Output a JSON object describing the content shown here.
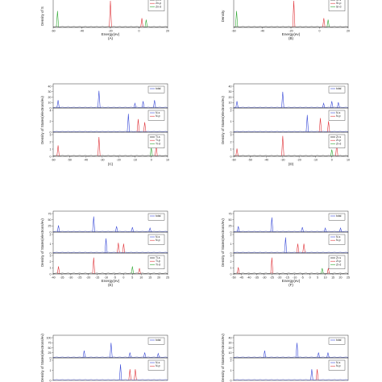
{
  "figure": {
    "panels": [
      {
        "id": "A",
        "caption": "(A)",
        "xlabel": "Energy(ev)",
        "ylabel": "Density of S",
        "xticks": [
          "-60",
          "-40",
          "-20",
          "0",
          "20"
        ],
        "subplots": [
          {
            "legend": [
              "Zn-s",
              "Zn-p",
              "Zn-d"
            ],
            "colors": [
              "#000000",
              "#e0343a",
              "#2fa832"
            ],
            "peaks": [
              {
                "x": -57,
                "h": 0.55,
                "c": 2
              },
              {
                "x": -20,
                "h": 0.9,
                "c": 1
              },
              {
                "x": 2,
                "h": 0.3,
                "c": 1
              },
              {
                "x": 5,
                "h": 0.25,
                "c": 2
              }
            ]
          }
        ]
      },
      {
        "id": "B",
        "caption": "(B)",
        "xlabel": "Energy(ev)",
        "ylabel": "Density",
        "xticks": [
          "-60",
          "-40",
          "-20",
          "0",
          "20"
        ],
        "subplots": [
          {
            "legend": [
              "Sr-s",
              "Sr-p",
              "Sr-d"
            ],
            "colors": [
              "#000000",
              "#e0343a",
              "#2fa832"
            ],
            "peaks": [
              {
                "x": -58,
                "h": 0.55,
                "c": 2
              },
              {
                "x": -18,
                "h": 0.9,
                "c": 1
              },
              {
                "x": 3,
                "h": 0.3,
                "c": 1
              },
              {
                "x": 6,
                "h": 0.25,
                "c": 2
              }
            ]
          }
        ]
      },
      {
        "id": "C",
        "caption": "(C)",
        "xlabel": "",
        "ylabel": "Density of States(electrons/ev)",
        "xticks": [
          "-60",
          "-50",
          "-40",
          "-30",
          "-20",
          "-10",
          "0",
          "10"
        ],
        "subplots": [
          {
            "legend": [
              "total"
            ],
            "colors": [
              "#3a4bd8"
            ],
            "yticks": [
              "0",
              "10",
              "20",
              "30",
              "40"
            ],
            "peaks": [
              {
                "x": -57,
                "h": 0.35,
                "c": 0
              },
              {
                "x": -32,
                "h": 0.8,
                "c": 0
              },
              {
                "x": -10,
                "h": 0.2,
                "c": 0
              },
              {
                "x": -5,
                "h": 0.3,
                "c": 0
              },
              {
                "x": 2,
                "h": 0.35,
                "c": 0
              }
            ]
          },
          {
            "legend": [
              "N-s",
              "N-p"
            ],
            "colors": [
              "#3a4bd8",
              "#e0343a"
            ],
            "yticks": [
              "0",
              "2",
              "4"
            ],
            "peaks": [
              {
                "x": -14,
                "h": 0.85,
                "c": 0
              },
              {
                "x": -8,
                "h": 0.6,
                "c": 1
              },
              {
                "x": -4,
                "h": 0.45,
                "c": 1
              }
            ]
          },
          {
            "legend": [
              "Ti-s",
              "Ti-p",
              "Ti-d"
            ],
            "colors": [
              "#000000",
              "#e0343a",
              "#2fa832"
            ],
            "yticks": [
              "0",
              "1",
              "2",
              "3"
            ],
            "peaks": [
              {
                "x": -57,
                "h": 0.5,
                "c": 1
              },
              {
                "x": -32,
                "h": 0.9,
                "c": 1
              },
              {
                "x": 0,
                "h": 0.4,
                "c": 2
              },
              {
                "x": 3,
                "h": 0.5,
                "c": 1
              }
            ]
          }
        ],
        "caption_x": [
          "-60",
          "-50",
          "-40",
          "-30",
          "-20",
          "-10",
          "0",
          "10"
        ]
      },
      {
        "id": "D",
        "caption": "(D)",
        "xlabel": "",
        "ylabel": "Density of States(electrons/ev)",
        "xticks": [
          "-60",
          "-50",
          "-40",
          "-30",
          "-20",
          "-10",
          "0",
          "10"
        ],
        "subplots": [
          {
            "legend": [
              "total"
            ],
            "colors": [
              "#3a4bd8"
            ],
            "yticks": [
              "0",
              "10",
              "20",
              "30",
              "40"
            ],
            "peaks": [
              {
                "x": -58,
                "h": 0.3,
                "c": 0
              },
              {
                "x": -30,
                "h": 0.75,
                "c": 0
              },
              {
                "x": -5,
                "h": 0.2,
                "c": 0
              },
              {
                "x": 0,
                "h": 0.3,
                "c": 0
              },
              {
                "x": 4,
                "h": 0.25,
                "c": 0
              }
            ]
          },
          {
            "legend": [
              "N-s",
              "N-p"
            ],
            "colors": [
              "#3a4bd8",
              "#e0343a"
            ],
            "yticks": [
              "0",
              "1",
              "2"
            ],
            "peaks": [
              {
                "x": -15,
                "h": 0.8,
                "c": 0
              },
              {
                "x": -7,
                "h": 0.65,
                "c": 1
              },
              {
                "x": -2,
                "h": 0.5,
                "c": 1
              }
            ]
          },
          {
            "legend": [
              "Zr-s",
              "Zr-p",
              "Zr-d"
            ],
            "colors": [
              "#000000",
              "#e0343a",
              "#2fa832"
            ],
            "yticks": [
              "0",
              "1",
              "2",
              "3"
            ],
            "peaks": [
              {
                "x": -58,
                "h": 0.35,
                "c": 1
              },
              {
                "x": -30,
                "h": 0.95,
                "c": 1
              },
              {
                "x": 0,
                "h": 0.3,
                "c": 2
              },
              {
                "x": 3,
                "h": 0.55,
                "c": 1
              }
            ]
          }
        ]
      },
      {
        "id": "E",
        "caption": "(E)",
        "xlabel": "Energy(ev)",
        "ylabel": "Density of States(electrons/ev)",
        "xticks": [
          "-40",
          "-35",
          "-30",
          "-25",
          "-20",
          "-15",
          "-10",
          "-5",
          "0",
          "5",
          "10",
          "15",
          "20",
          "25"
        ],
        "subplots": [
          {
            "legend": [
              "total"
            ],
            "colors": [
              "#3a4bd8"
            ],
            "yticks": [
              "0",
              "25",
              "50",
              "75"
            ],
            "peaks": [
              {
                "x": -37,
                "h": 0.35,
                "c": 0
              },
              {
                "x": -17,
                "h": 0.85,
                "c": 0
              },
              {
                "x": -4,
                "h": 0.3,
                "c": 0
              },
              {
                "x": 5,
                "h": 0.25,
                "c": 0
              },
              {
                "x": 15,
                "h": 0.2,
                "c": 0
              }
            ]
          },
          {
            "legend": [
              "N-s",
              "N-p"
            ],
            "colors": [
              "#3a4bd8",
              "#e0343a"
            ],
            "yticks": [
              "0",
              "1",
              "2"
            ],
            "peaks": [
              {
                "x": -10,
                "h": 0.8,
                "c": 0
              },
              {
                "x": -3,
                "h": 0.55,
                "c": 1
              },
              {
                "x": 0,
                "h": 0.5,
                "c": 1
              }
            ]
          },
          {
            "legend": [
              "Ti-s",
              "Ti-p",
              "Ti-d"
            ],
            "colors": [
              "#000000",
              "#e0343a",
              "#2fa832"
            ],
            "yticks": [
              "0",
              "1",
              "2",
              "3"
            ],
            "peaks": [
              {
                "x": -37,
                "h": 0.4,
                "c": 1
              },
              {
                "x": -17,
                "h": 0.9,
                "c": 1
              },
              {
                "x": 5,
                "h": 0.4,
                "c": 2
              },
              {
                "x": 9,
                "h": 0.3,
                "c": 1
              }
            ]
          }
        ]
      },
      {
        "id": "F",
        "caption": "(F)",
        "xlabel": "Energy(ev)",
        "ylabel": "Density of States(electrons/ev)",
        "xticks": [
          "-50",
          "-45",
          "-40",
          "-35",
          "-30",
          "-25",
          "-20",
          "-15",
          "-10",
          "-5",
          "0",
          "5",
          "10",
          "15",
          "20",
          "25"
        ],
        "subplots": [
          {
            "legend": [
              "total"
            ],
            "colors": [
              "#3a4bd8"
            ],
            "yticks": [
              "0",
              "25",
              "50",
              "75"
            ],
            "peaks": [
              {
                "x": -47,
                "h": 0.3,
                "c": 0
              },
              {
                "x": -25,
                "h": 0.8,
                "c": 0
              },
              {
                "x": -5,
                "h": 0.25,
                "c": 0
              },
              {
                "x": 10,
                "h": 0.2,
                "c": 0
              },
              {
                "x": 20,
                "h": 0.2,
                "c": 0
              }
            ]
          },
          {
            "legend": [
              "N-s",
              "N-p"
            ],
            "colors": [
              "#3a4bd8",
              "#e0343a"
            ],
            "yticks": [
              "0",
              "1",
              "2"
            ],
            "peaks": [
              {
                "x": -16,
                "h": 0.85,
                "c": 0
              },
              {
                "x": -8,
                "h": 0.5,
                "c": 1
              },
              {
                "x": -4,
                "h": 0.5,
                "c": 1
              }
            ]
          },
          {
            "legend": [
              "Zr-s",
              "Zr-p",
              "Zr-d"
            ],
            "colors": [
              "#000000",
              "#e0343a",
              "#2fa832"
            ],
            "yticks": [
              "0",
              "1",
              "2",
              "3"
            ],
            "peaks": [
              {
                "x": -47,
                "h": 0.35,
                "c": 1
              },
              {
                "x": -25,
                "h": 0.9,
                "c": 1
              },
              {
                "x": 8,
                "h": 0.3,
                "c": 2
              },
              {
                "x": 12,
                "h": 0.3,
                "c": 1
              }
            ]
          }
        ]
      },
      {
        "id": "G",
        "caption": "",
        "xlabel": "",
        "ylabel": "Density of States(electrons/ev)",
        "xticks": [],
        "subplots": [
          {
            "legend": [
              "total"
            ],
            "colors": [
              "#3a4bd8"
            ],
            "yticks": [
              "0",
              "25",
              "50",
              "75",
              "100"
            ],
            "peaks": [
              {
                "x": -37,
                "h": 0.35,
                "c": 0
              },
              {
                "x": -17,
                "h": 0.75,
                "c": 0
              },
              {
                "x": -3,
                "h": 0.25,
                "c": 0
              },
              {
                "x": 8,
                "h": 0.25,
                "c": 0
              },
              {
                "x": 18,
                "h": 0.2,
                "c": 0
              }
            ]
          },
          {
            "legend": [
              "N-s",
              "N-p"
            ],
            "colors": [
              "#3a4bd8",
              "#e0343a"
            ],
            "yticks": [
              "0",
              "1",
              "2"
            ],
            "peaks": [
              {
                "x": -10,
                "h": 0.8,
                "c": 0
              },
              {
                "x": -3,
                "h": 0.55,
                "c": 1
              },
              {
                "x": 1,
                "h": 0.55,
                "c": 1
              }
            ]
          }
        ]
      },
      {
        "id": "H",
        "caption": "",
        "xlabel": "",
        "ylabel": "Density of States(electrons/ev)",
        "xticks": [],
        "subplots": [
          {
            "legend": [
              "total"
            ],
            "colors": [
              "#3a4bd8"
            ],
            "yticks": [
              "0",
              "10",
              "20",
              "30",
              "40"
            ],
            "peaks": [
              {
                "x": -37,
                "h": 0.35,
                "c": 0
              },
              {
                "x": -13,
                "h": 0.75,
                "c": 0
              },
              {
                "x": 3,
                "h": 0.25,
                "c": 0
              },
              {
                "x": 10,
                "h": 0.25,
                "c": 0
              }
            ]
          },
          {
            "legend": [
              "N-s",
              "N-p"
            ],
            "colors": [
              "#3a4bd8",
              "#e0343a"
            ],
            "yticks": [
              "0",
              "1",
              "2"
            ],
            "peaks": [
              {
                "x": -2,
                "h": 0.55,
                "c": 0
              },
              {
                "x": 2,
                "h": 0.55,
                "c": 1
              }
            ]
          }
        ]
      }
    ]
  },
  "chart_data": [
    {
      "type": "line",
      "panel": "A",
      "title": "",
      "xlabel": "Energy(ev)",
      "ylabel": "Density of S",
      "series": [
        {
          "name": "Zn-s"
        },
        {
          "name": "Zn-p"
        },
        {
          "name": "Zn-d"
        }
      ]
    },
    {
      "type": "line",
      "panel": "B",
      "title": "",
      "xlabel": "Energy(ev)",
      "series": [
        {
          "name": "Sr-s"
        },
        {
          "name": "Sr-p"
        },
        {
          "name": "Sr-d"
        }
      ]
    },
    {
      "type": "line",
      "panel": "C",
      "title": "",
      "xlabel": "",
      "ylabel": "Density of States(electrons/ev)",
      "series": [
        {
          "name": "total"
        },
        {
          "name": "N-s"
        },
        {
          "name": "N-p"
        },
        {
          "name": "Ti-s"
        },
        {
          "name": "Ti-p"
        },
        {
          "name": "Ti-d"
        }
      ]
    },
    {
      "type": "line",
      "panel": "D",
      "title": "",
      "xlabel": "",
      "ylabel": "Density of States(electrons/ev)",
      "series": [
        {
          "name": "total"
        },
        {
          "name": "N-s"
        },
        {
          "name": "N-p"
        },
        {
          "name": "Zr-s"
        },
        {
          "name": "Zr-p"
        },
        {
          "name": "Zr-d"
        }
      ]
    },
    {
      "type": "line",
      "panel": "E",
      "title": "",
      "xlabel": "Energy(ev)",
      "ylabel": "Density of States(electrons/ev)",
      "series": [
        {
          "name": "total"
        },
        {
          "name": "N-s"
        },
        {
          "name": "N-p"
        },
        {
          "name": "Ti-s"
        },
        {
          "name": "Ti-p"
        },
        {
          "name": "Ti-d"
        }
      ]
    },
    {
      "type": "line",
      "panel": "F",
      "title": "",
      "xlabel": "Energy(ev)",
      "ylabel": "Density of States(electrons/ev)",
      "series": [
        {
          "name": "total"
        },
        {
          "name": "N-s"
        },
        {
          "name": "N-p"
        },
        {
          "name": "Zr-s"
        },
        {
          "name": "Zr-p"
        },
        {
          "name": "Zr-d"
        }
      ]
    },
    {
      "type": "line",
      "panel": "G",
      "title": "",
      "ylabel": "Density of States(electrons/ev)",
      "series": [
        {
          "name": "total"
        },
        {
          "name": "N-s"
        },
        {
          "name": "N-p"
        }
      ]
    },
    {
      "type": "line",
      "panel": "H",
      "title": "",
      "ylabel": "Density of States(electrons/ev)",
      "series": [
        {
          "name": "total"
        },
        {
          "name": "N-s"
        },
        {
          "name": "N-p"
        }
      ]
    }
  ]
}
